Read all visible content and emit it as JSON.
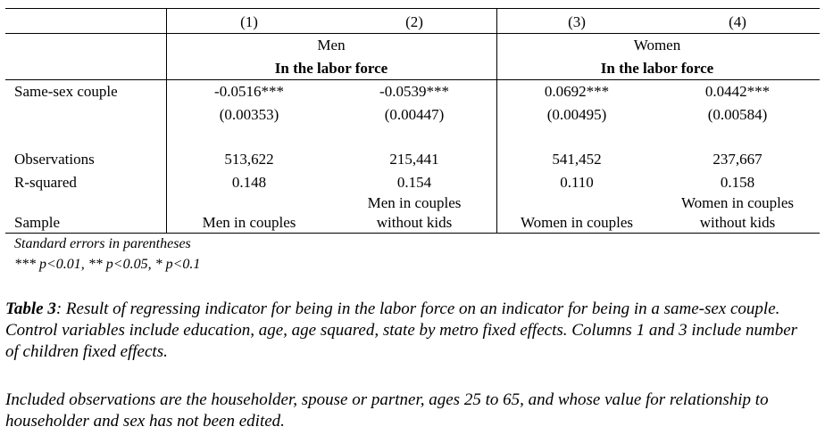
{
  "columns": [
    "(1)",
    "(2)",
    "(3)",
    "(4)"
  ],
  "groups": [
    {
      "name": "Men",
      "subtitle": "In the labor force"
    },
    {
      "name": "Women",
      "subtitle": "In the labor force"
    }
  ],
  "rows": {
    "coef_label": "Same-sex couple",
    "coefs": [
      "-0.0516***",
      "-0.0539***",
      "0.0692***",
      "0.0442***"
    ],
    "ses": [
      "(0.00353)",
      "(0.00447)",
      "(0.00495)",
      "(0.00584)"
    ],
    "obs_label": "Observations",
    "obs": [
      "513,622",
      "215,441",
      "541,452",
      "237,667"
    ],
    "r2_label": "R-squared",
    "r2": [
      "0.148",
      "0.154",
      "0.110",
      "0.158"
    ],
    "sample_label": "Sample",
    "sample_line1": [
      "",
      "Men in couples",
      "",
      "Women in couples"
    ],
    "sample_line2": [
      "Men in couples",
      "without kids",
      "Women in couples",
      "without kids"
    ]
  },
  "notes": {
    "line1": "Standard errors in parentheses",
    "line2": "*** p<0.01, ** p<0.05, * p<0.1"
  },
  "caption": {
    "label": "Table 3",
    "text": ": Result of regressing indicator for being in the labor force on an indicator for being in a same-sex couple. Control variables include education, age, age squared, state by metro fixed effects. Columns 1 and 3 include number of children fixed effects.",
    "text2": "Included observations are the householder, spouse or partner, ages 25 to 65, and whose value for relationship to householder and sex has not been edited."
  }
}
